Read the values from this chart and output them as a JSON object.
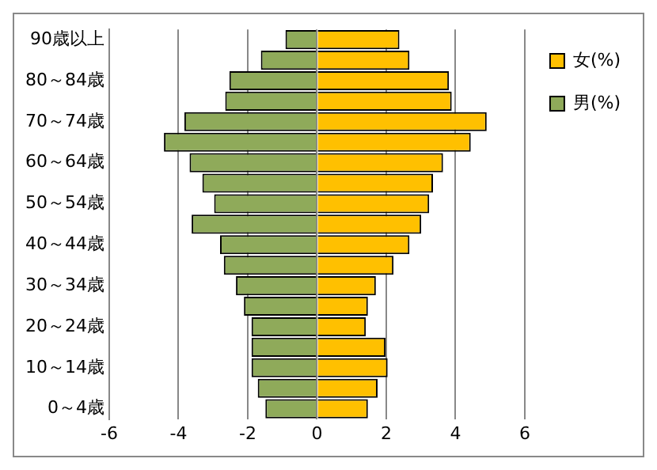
{
  "chart_data": {
    "type": "bar",
    "orientation": "horizontal",
    "stacked": true,
    "categories": [
      "90歳以上",
      null,
      "80～84歳",
      null,
      "70～74歳",
      null,
      "60～64歳",
      null,
      "50～54歳",
      null,
      "40～44歳",
      null,
      "30～34歳",
      null,
      "20～24歳",
      null,
      "10～14歳",
      null,
      "0～4歳"
    ],
    "series": [
      {
        "name": "女(%)",
        "color": "#ffc000",
        "values": [
          2.38,
          2.67,
          3.81,
          3.89,
          4.9,
          4.44,
          3.64,
          3.35,
          3.24,
          3.01,
          2.67,
          2.21,
          1.7,
          1.47,
          1.41,
          1.98,
          2.04,
          1.75,
          1.47
        ]
      },
      {
        "name": "男(%)",
        "color": "#8faa5a",
        "values": [
          -0.91,
          -1.62,
          -2.53,
          -2.65,
          -3.83,
          -4.42,
          -3.68,
          -3.31,
          -2.97,
          -3.62,
          -2.8,
          -2.69,
          -2.34,
          -2.11,
          -1.89,
          -1.89,
          -1.89,
          -1.71,
          -1.49
        ]
      }
    ],
    "xlim": [
      -6,
      6
    ],
    "xticks": [
      -6,
      -4,
      -2,
      0,
      2,
      4,
      6
    ],
    "grid": "x",
    "legend": "right"
  }
}
